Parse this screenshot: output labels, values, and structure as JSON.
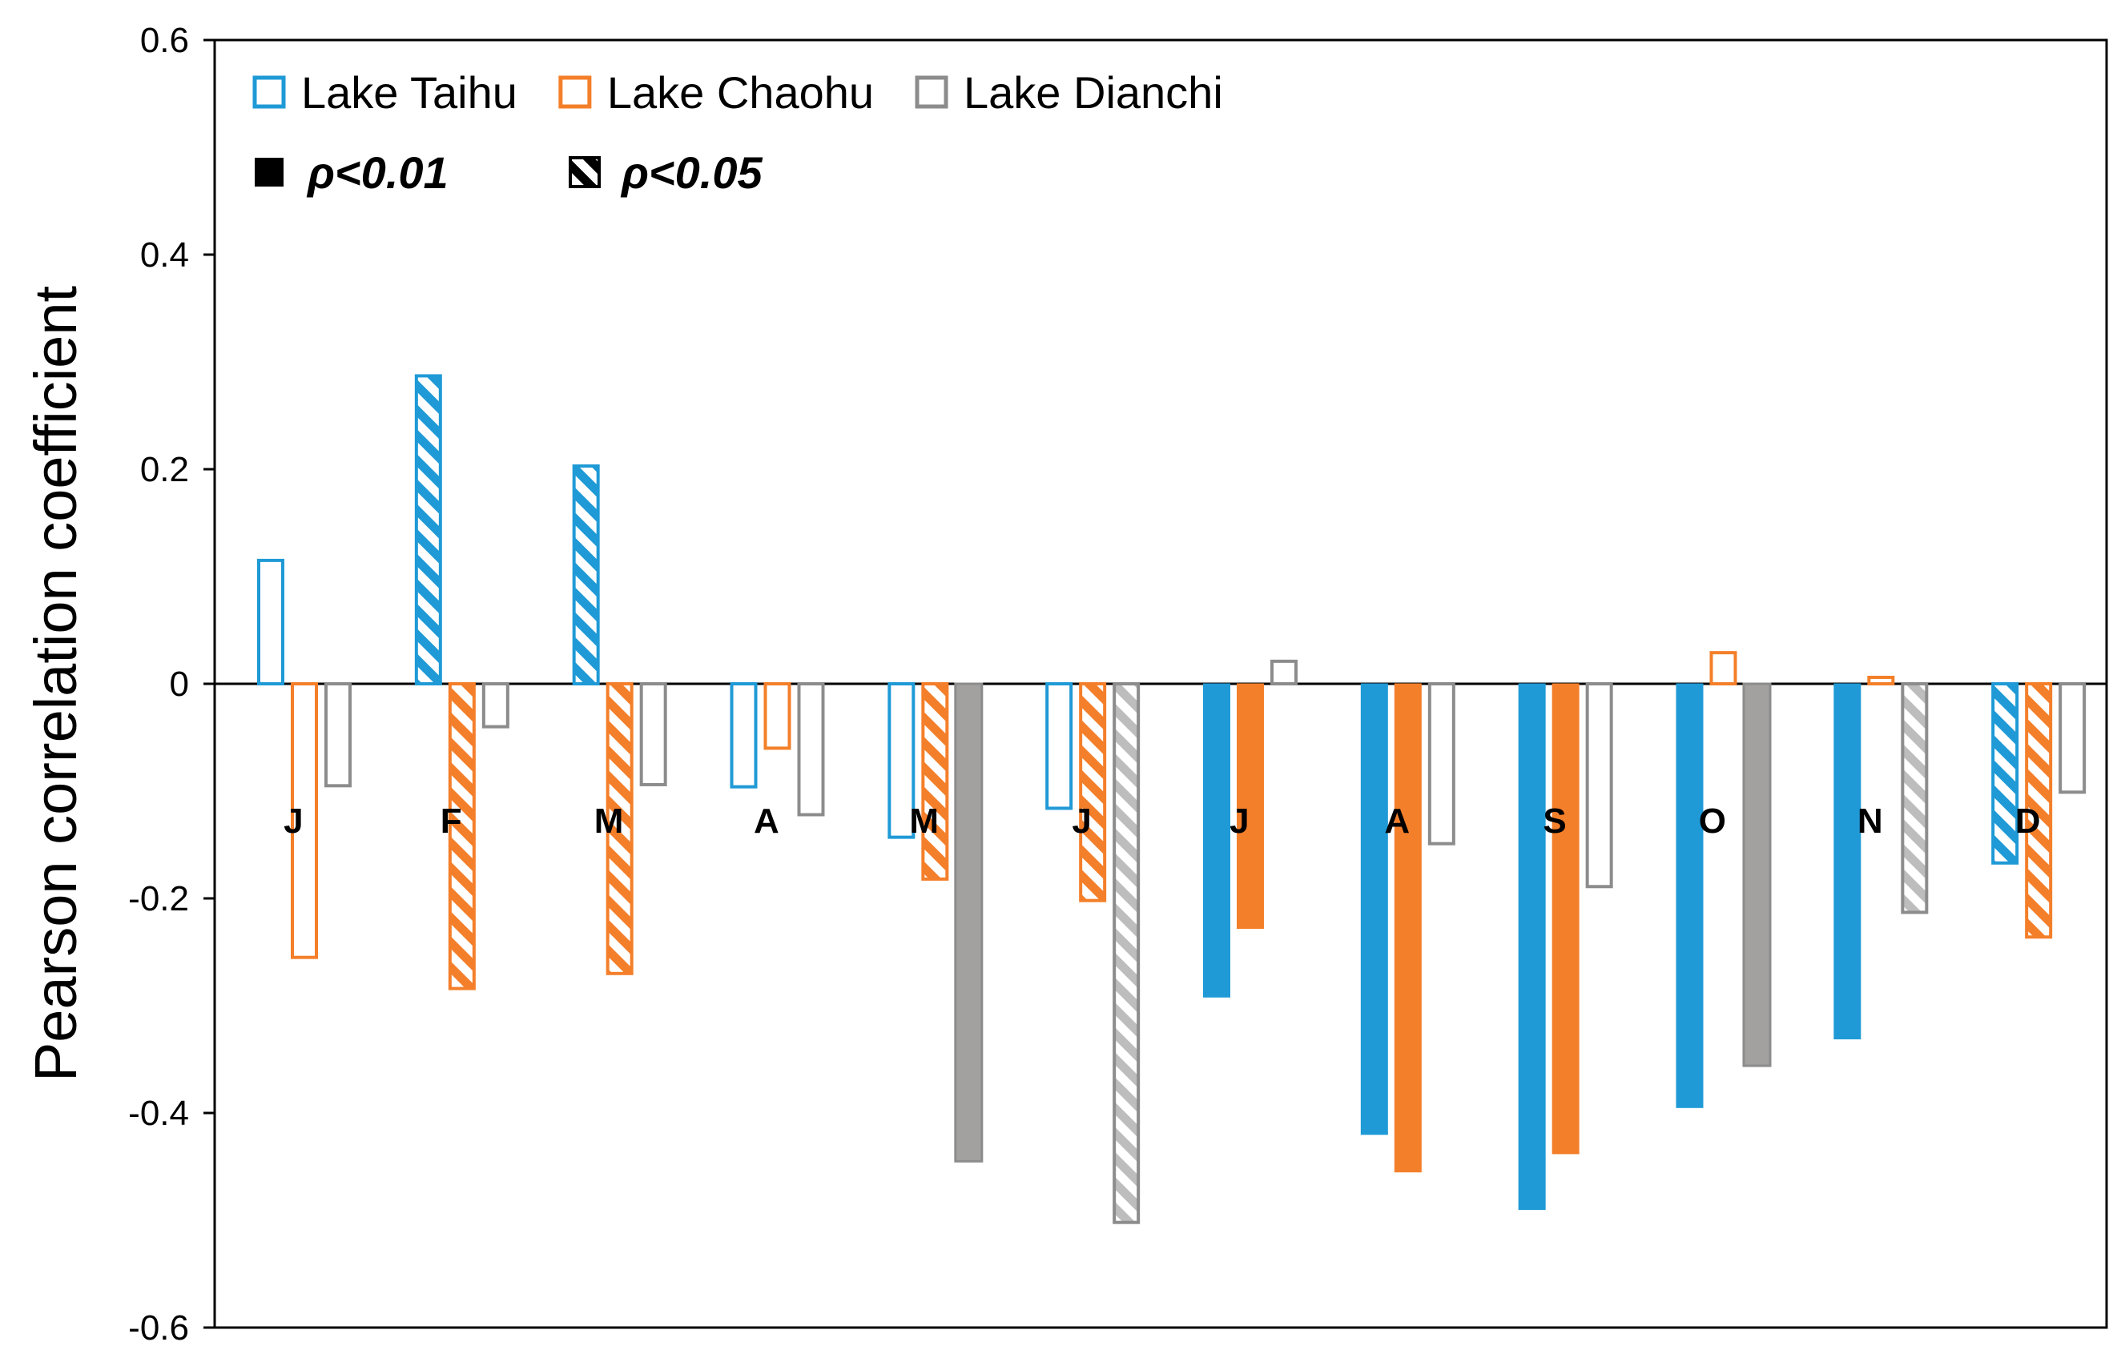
{
  "chart_data": {
    "type": "bar",
    "title": "",
    "xlabel": "",
    "ylabel": "Pearson correlation coefficient",
    "ylim": [
      -0.6,
      0.6
    ],
    "yticks": [
      0.6,
      0.4,
      0.2,
      0,
      -0.2,
      -0.4,
      -0.6
    ],
    "ytick_labels": [
      "0.6",
      "0.4",
      "0.2",
      "0",
      "-0.2",
      "-0.4",
      "-0.6"
    ],
    "categories": [
      "J",
      "F",
      "M",
      "A",
      "M",
      "J",
      "J",
      "A",
      "S",
      "O",
      "N",
      "D"
    ],
    "grid": false,
    "legend_position": "top-left",
    "series": [
      {
        "name": "Lake Taihu",
        "color": "#1f9ad6",
        "values": [
          0.115,
          0.287,
          0.203,
          -0.096,
          -0.143,
          -0.116,
          -0.292,
          -0.42,
          -0.49,
          -0.395,
          -0.331,
          -0.167
        ],
        "significance": [
          "none",
          "p05",
          "p05",
          "none",
          "none",
          "none",
          "p01",
          "p01",
          "p01",
          "p01",
          "p01",
          "p05"
        ]
      },
      {
        "name": "Lake Chaohu",
        "color": "#f47f2a",
        "values": [
          -0.255,
          -0.284,
          -0.27,
          -0.06,
          -0.182,
          -0.202,
          -0.228,
          -0.455,
          -0.438,
          0.029,
          0.006,
          -0.236
        ],
        "significance": [
          "none",
          "p05",
          "p05",
          "none",
          "p05",
          "p05",
          "p01",
          "p01",
          "p01",
          "none",
          "none",
          "p05"
        ]
      },
      {
        "name": "Lake Dianchi",
        "color": "#8c8c8c",
        "values": [
          -0.095,
          -0.04,
          -0.094,
          -0.122,
          -0.445,
          -0.502,
          0.021,
          -0.149,
          -0.189,
          -0.356,
          -0.213,
          -0.101
        ],
        "significance": [
          "none",
          "none",
          "none",
          "none",
          "p01",
          "p05",
          "none",
          "none",
          "none",
          "p01",
          "p05",
          "none"
        ]
      }
    ],
    "significance_legend": {
      "p01": "ρ<0.01",
      "p05": "ρ<0.05"
    },
    "fill_colors": {
      "taihu_solid": "#1f9ad6",
      "chaohu_solid": "#f47f2a",
      "dianchi_solid": "#a3a0a0",
      "dianchi_hatch": "#bdbdbd"
    }
  }
}
